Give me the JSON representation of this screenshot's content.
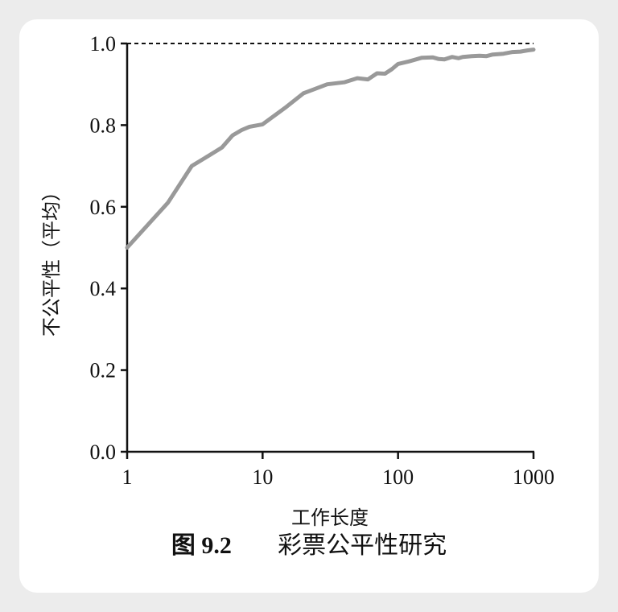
{
  "chart_data": {
    "type": "line",
    "xlabel": "工作长度",
    "ylabel": "不公平性（平均）",
    "xscale": "log",
    "xlim": [
      1,
      1000
    ],
    "ylim": [
      0.0,
      1.0
    ],
    "x_ticks": [
      "1",
      "10",
      "100",
      "1000"
    ],
    "x_tick_values": [
      1,
      10,
      100,
      1000
    ],
    "y_ticks": [
      "0.0",
      "0.2",
      "0.4",
      "0.6",
      "0.8",
      "1.0"
    ],
    "y_tick_values": [
      0.0,
      0.2,
      0.4,
      0.6,
      0.8,
      1.0
    ],
    "reference_line": {
      "y": 1.0,
      "style": "dashed"
    },
    "grid": false,
    "series": [
      {
        "color": "#999999",
        "x": [
          1,
          2,
          3,
          4,
          5,
          6,
          7,
          8,
          10,
          15,
          20,
          30,
          40,
          50,
          60,
          70,
          80,
          90,
          100,
          120,
          150,
          180,
          200,
          220,
          250,
          280,
          300,
          350,
          400,
          450,
          500,
          600,
          700,
          800,
          900,
          1000
        ],
        "y": [
          0.5,
          0.61,
          0.7,
          0.725,
          0.745,
          0.775,
          0.788,
          0.796,
          0.802,
          0.845,
          0.878,
          0.9,
          0.905,
          0.915,
          0.912,
          0.927,
          0.926,
          0.937,
          0.95,
          0.956,
          0.965,
          0.966,
          0.962,
          0.961,
          0.967,
          0.964,
          0.967,
          0.969,
          0.97,
          0.969,
          0.973,
          0.975,
          0.979,
          0.98,
          0.983,
          0.985
        ]
      }
    ]
  },
  "caption": {
    "figure_number": "图 9.2",
    "title": "彩票公平性研究"
  }
}
